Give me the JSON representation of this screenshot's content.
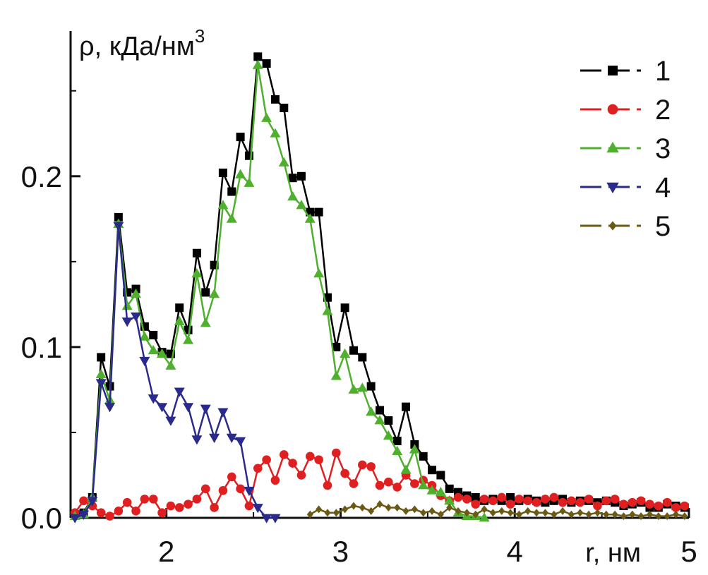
{
  "chart_data": {
    "type": "line",
    "xlabel": "r, нм",
    "ylabel": "ρ, кДа/нм",
    "ylabel_sup": "3",
    "xlim": [
      1.45,
      5.0
    ],
    "ylim": [
      0.0,
      0.285
    ],
    "x_ticks": [
      2,
      3,
      4,
      5
    ],
    "x_tick_labels": [
      "2",
      "3",
      "4",
      "5"
    ],
    "y_ticks": [
      0.0,
      0.1,
      0.2
    ],
    "y_tick_labels": [
      "0.0",
      "0.1",
      "0.2"
    ],
    "grid": false,
    "legend_position": "top-right",
    "series": [
      {
        "name": "1",
        "color": "#000000",
        "marker": "square",
        "x": [
          1.475,
          1.525,
          1.575,
          1.625,
          1.675,
          1.725,
          1.775,
          1.825,
          1.875,
          1.925,
          1.975,
          2.025,
          2.075,
          2.125,
          2.175,
          2.225,
          2.275,
          2.325,
          2.375,
          2.425,
          2.475,
          2.525,
          2.575,
          2.625,
          2.675,
          2.725,
          2.775,
          2.825,
          2.875,
          2.925,
          2.975,
          3.025,
          3.075,
          3.125,
          3.175,
          3.225,
          3.275,
          3.325,
          3.375,
          3.425,
          3.475,
          3.525,
          3.575,
          3.625,
          3.675,
          3.725,
          3.775,
          3.825,
          3.875,
          3.925,
          3.975,
          4.025,
          4.075,
          4.125,
          4.175,
          4.225,
          4.275,
          4.325,
          4.375,
          4.425,
          4.475,
          4.525,
          4.575,
          4.625,
          4.675,
          4.725,
          4.775,
          4.825,
          4.875,
          4.925,
          4.975
        ],
        "values": [
          0.002,
          0.003,
          0.012,
          0.094,
          0.077,
          0.176,
          0.132,
          0.134,
          0.112,
          0.107,
          0.097,
          0.096,
          0.123,
          0.11,
          0.155,
          0.132,
          0.148,
          0.202,
          0.191,
          0.223,
          0.212,
          0.27,
          0.266,
          0.245,
          0.24,
          0.199,
          0.2,
          0.179,
          0.179,
          0.129,
          0.1,
          0.123,
          0.098,
          0.094,
          0.077,
          0.063,
          0.057,
          0.045,
          0.065,
          0.043,
          0.036,
          0.028,
          0.025,
          0.017,
          0.015,
          0.013,
          0.012,
          0.01,
          0.011,
          0.01,
          0.012,
          0.01,
          0.011,
          0.01,
          0.009,
          0.01,
          0.011,
          0.009,
          0.01,
          0.01,
          0.009,
          0.01,
          0.009,
          0.007,
          0.008,
          0.009,
          0.006,
          0.006,
          0.008,
          0.007,
          0.006
        ]
      },
      {
        "name": "2",
        "color": "#e02020",
        "marker": "circle",
        "x": [
          1.475,
          1.525,
          1.575,
          1.625,
          1.675,
          1.725,
          1.775,
          1.825,
          1.875,
          1.925,
          1.975,
          2.025,
          2.075,
          2.125,
          2.175,
          2.225,
          2.275,
          2.325,
          2.375,
          2.425,
          2.475,
          2.525,
          2.575,
          2.625,
          2.675,
          2.725,
          2.775,
          2.825,
          2.875,
          2.925,
          2.975,
          3.025,
          3.075,
          3.125,
          3.175,
          3.225,
          3.275,
          3.325,
          3.375,
          3.425,
          3.475,
          3.525,
          3.575,
          3.625,
          3.675,
          3.725,
          3.775,
          3.825,
          3.875,
          3.925,
          3.975,
          4.025,
          4.075,
          4.125,
          4.175,
          4.225,
          4.275,
          4.325,
          4.375,
          4.425,
          4.475,
          4.525,
          4.575,
          4.625,
          4.675,
          4.725,
          4.775,
          4.825,
          4.875,
          4.925,
          4.975
        ],
        "values": [
          0.003,
          0.01,
          0.007,
          0.003,
          0.001,
          0.004,
          0.009,
          0.004,
          0.011,
          0.011,
          0.003,
          0.007,
          0.006,
          0.008,
          0.011,
          0.017,
          0.006,
          0.016,
          0.024,
          0.017,
          0.007,
          0.029,
          0.034,
          0.022,
          0.037,
          0.032,
          0.025,
          0.036,
          0.034,
          0.019,
          0.038,
          0.026,
          0.02,
          0.031,
          0.03,
          0.019,
          0.021,
          0.018,
          0.025,
          0.02,
          0.022,
          0.019,
          0.013,
          0.01,
          0.012,
          0.011,
          0.008,
          0.011,
          0.01,
          0.012,
          0.008,
          0.011,
          0.01,
          0.009,
          0.011,
          0.012,
          0.009,
          0.01,
          0.009,
          0.011,
          0.007,
          0.01,
          0.011,
          0.008,
          0.009,
          0.01,
          0.008,
          0.007,
          0.009,
          0.006,
          0.007
        ]
      },
      {
        "name": "3",
        "color": "#4fb02e",
        "marker": "triangle-up",
        "x": [
          1.475,
          1.525,
          1.575,
          1.625,
          1.675,
          1.725,
          1.775,
          1.825,
          1.875,
          1.925,
          1.975,
          2.025,
          2.075,
          2.125,
          2.175,
          2.225,
          2.275,
          2.325,
          2.375,
          2.425,
          2.475,
          2.525,
          2.575,
          2.625,
          2.675,
          2.725,
          2.775,
          2.825,
          2.875,
          2.925,
          2.975,
          3.025,
          3.075,
          3.125,
          3.175,
          3.225,
          3.275,
          3.325,
          3.375,
          3.425,
          3.475,
          3.525,
          3.575,
          3.625,
          3.675,
          3.725,
          3.775,
          3.825
        ],
        "values": [
          0.001,
          0.002,
          0.012,
          0.084,
          0.069,
          0.172,
          0.124,
          0.131,
          0.106,
          0.098,
          0.096,
          0.089,
          0.115,
          0.104,
          0.143,
          0.114,
          0.131,
          0.183,
          0.175,
          0.201,
          0.196,
          0.265,
          0.234,
          0.225,
          0.208,
          0.188,
          0.183,
          0.175,
          0.143,
          0.121,
          0.083,
          0.096,
          0.075,
          0.076,
          0.062,
          0.057,
          0.048,
          0.039,
          0.028,
          0.04,
          0.019,
          0.016,
          0.015,
          0.01,
          0.003,
          0.001,
          0.001,
          0.0
        ]
      },
      {
        "name": "4",
        "color": "#2a2a8c",
        "marker": "triangle-down",
        "x": [
          1.475,
          1.525,
          1.575,
          1.625,
          1.675,
          1.725,
          1.775,
          1.825,
          1.875,
          1.925,
          1.975,
          2.025,
          2.075,
          2.125,
          2.175,
          2.225,
          2.275,
          2.325,
          2.375,
          2.425,
          2.475,
          2.525,
          2.575,
          2.625
        ],
        "values": [
          0.0,
          0.002,
          0.01,
          0.079,
          0.065,
          0.171,
          0.115,
          0.118,
          0.092,
          0.07,
          0.065,
          0.057,
          0.074,
          0.065,
          0.046,
          0.064,
          0.047,
          0.062,
          0.047,
          0.045,
          0.016,
          0.006,
          0.0,
          0.0
        ]
      },
      {
        "name": "5",
        "color": "#6b5a14",
        "marker": "diamond",
        "x": [
          2.825,
          2.875,
          2.925,
          2.975,
          3.025,
          3.075,
          3.125,
          3.175,
          3.225,
          3.275,
          3.325,
          3.375,
          3.425,
          3.475,
          3.525,
          3.575,
          3.625,
          3.675,
          3.725,
          3.775,
          3.825,
          3.875,
          3.925,
          3.975,
          4.025,
          4.075,
          4.125,
          4.175,
          4.225,
          4.275,
          4.325,
          4.375,
          4.425,
          4.475,
          4.525,
          4.575,
          4.625,
          4.675,
          4.725,
          4.775,
          4.825,
          4.875,
          4.925,
          4.975
        ],
        "values": [
          0.002,
          0.005,
          0.003,
          0.003,
          0.005,
          0.007,
          0.006,
          0.004,
          0.008,
          0.006,
          0.006,
          0.004,
          0.005,
          0.003,
          0.004,
          0.002,
          0.006,
          0.004,
          0.003,
          0.002,
          0.005,
          0.003,
          0.004,
          0.003,
          0.002,
          0.004,
          0.003,
          0.003,
          0.002,
          0.004,
          0.002,
          0.003,
          0.002,
          0.003,
          0.002,
          0.002,
          0.001,
          0.002,
          0.001,
          0.002,
          0.001,
          0.001,
          0.002,
          0.001
        ]
      }
    ]
  }
}
